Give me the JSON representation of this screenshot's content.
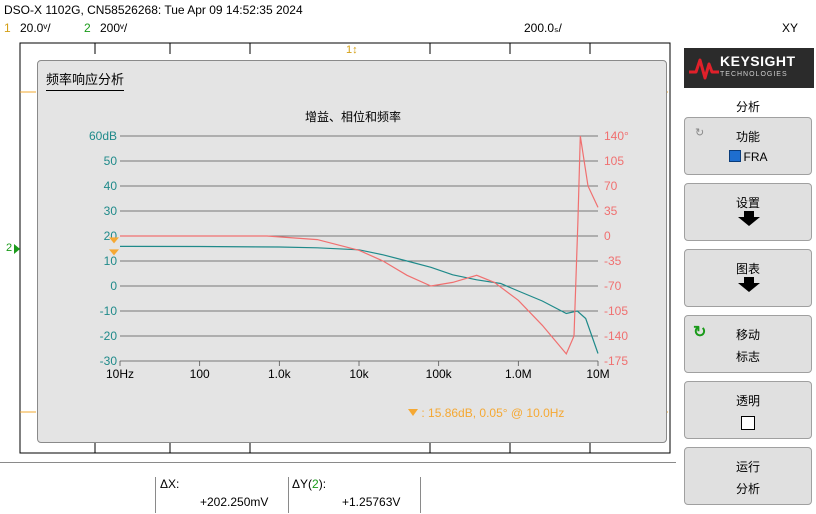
{
  "header": {
    "title": "DSO-X 1102G, CN58526268: Tue Apr 09 14:52:35 2024",
    "ch1_num": "1",
    "ch1_scale": "20.0ᵛ/",
    "ch2_num": "2",
    "ch2_scale": "200ᵛ/",
    "timebase": "200.0ₛ/",
    "mode": "XY",
    "trigger_marker": "1↕"
  },
  "dialog": {
    "title": "频率响应分析",
    "plot_title": "增益、相位和频率"
  },
  "chart_data": {
    "type": "line",
    "title": "增益、相位和频率",
    "x_scale": "log",
    "x_tick_labels": [
      "10Hz",
      "100",
      "1.0k",
      "10k",
      "100k",
      "1.0M",
      "10M"
    ],
    "x_ticks": [
      10,
      100,
      1000,
      10000,
      100000,
      1000000,
      10000000
    ],
    "y_left_ticks_labels": [
      "60dB",
      "50",
      "40",
      "30",
      "20",
      "10",
      "0",
      "-10",
      "-20",
      "-30"
    ],
    "y_left_range": [
      -30,
      60
    ],
    "y_right_ticks_labels": [
      "140°",
      "105",
      "70",
      "35",
      "0",
      "-35",
      "-70",
      "-105",
      "-140",
      "-175"
    ],
    "y_right_range": [
      -175,
      140
    ],
    "colors": {
      "gain": "#1f8a8a",
      "phase": "#f07070",
      "marker": "#f5a833"
    },
    "series": [
      {
        "role": "gain",
        "axis": "left",
        "x": [
          10,
          100,
          1000,
          3000,
          10000,
          20000,
          40000,
          80000,
          150000,
          300000,
          600000,
          1000000,
          2000000,
          4000000,
          5500000,
          7000000,
          10000000
        ],
        "y": [
          15.86,
          15.8,
          15.6,
          15.3,
          14.5,
          12.5,
          10,
          7.5,
          4.5,
          2.5,
          1,
          -2,
          -6,
          -11,
          -10,
          -13,
          -27
        ]
      },
      {
        "role": "phase",
        "axis": "right",
        "x": [
          10,
          700,
          3000,
          10000,
          20000,
          40000,
          80000,
          150000,
          300000,
          500000,
          1000000,
          2000000,
          4000000,
          5000000,
          5600000,
          6000000,
          7500000,
          10000000
        ],
        "y": [
          0.05,
          0,
          -5,
          -20,
          -35,
          -55,
          -70,
          -65,
          -55,
          -65,
          -90,
          -125,
          -165,
          -140,
          20,
          140,
          70,
          40
        ]
      }
    ],
    "marker_label": "15.86dB, 0.05° @ 10.0Hz"
  },
  "softkeys": {
    "brand": "KEYSIGHT",
    "brand_sub": "TECHNOLOGIES",
    "menu_title": "分析",
    "k1_l1": "功能",
    "k1_l2": "FRA",
    "k2_l1": "设置",
    "k3_l1": "图表",
    "k4_l1": "移动",
    "k4_l2": "标志",
    "k5_l1": "透明",
    "k6_l1": "运行",
    "k6_l2": "分析"
  },
  "measurements": {
    "dx_label": "ΔX:",
    "dx_value": "+202.250mV",
    "dy_label_pre": "ΔY(",
    "dy_label_ch": "2",
    "dy_label_post": "):",
    "dy_value": "+1.25763V"
  },
  "left_marker": "2"
}
